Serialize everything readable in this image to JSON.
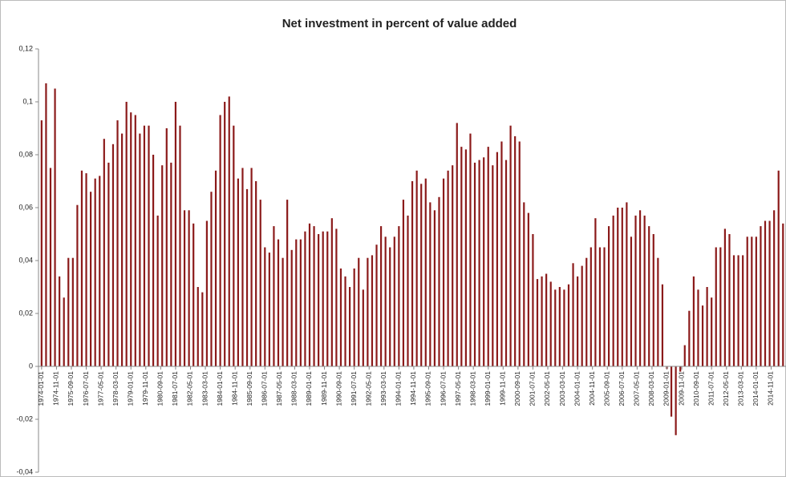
{
  "chart_data": {
    "type": "bar",
    "title": "Net investment in percent of value added",
    "color": "#8b1a1a",
    "x": [
      "1974-01-01",
      "1974-04-01",
      "1974-07-01",
      "1974-10-01",
      "1975-01-01",
      "1975-04-01",
      "1975-07-01",
      "1975-10-01",
      "1976-01-01",
      "1976-04-01",
      "1976-07-01",
      "1976-10-01",
      "1977-01-01",
      "1977-04-01",
      "1977-07-01",
      "1977-10-01",
      "1978-01-01",
      "1978-04-01",
      "1978-07-01",
      "1978-10-01",
      "1979-01-01",
      "1979-04-01",
      "1979-07-01",
      "1979-10-01",
      "1980-01-01",
      "1980-04-01",
      "1980-07-01",
      "1980-10-01",
      "1981-01-01",
      "1981-04-01",
      "1981-07-01",
      "1981-10-01",
      "1982-01-01",
      "1982-04-01",
      "1982-07-01",
      "1982-10-01",
      "1983-01-01",
      "1983-04-01",
      "1983-07-01",
      "1983-10-01",
      "1984-01-01",
      "1984-04-01",
      "1984-07-01",
      "1984-10-01",
      "1985-01-01",
      "1985-04-01",
      "1985-07-01",
      "1985-10-01",
      "1986-01-01",
      "1986-04-01",
      "1986-07-01",
      "1986-10-01",
      "1987-01-01",
      "1987-04-01",
      "1987-07-01",
      "1987-10-01",
      "1988-01-01",
      "1988-04-01",
      "1988-07-01",
      "1988-10-01",
      "1989-01-01",
      "1989-04-01",
      "1989-07-01",
      "1989-10-01",
      "1990-01-01",
      "1990-04-01",
      "1990-07-01",
      "1990-10-01",
      "1991-01-01",
      "1991-04-01",
      "1991-07-01",
      "1991-10-01",
      "1992-01-01",
      "1992-04-01",
      "1992-07-01",
      "1992-10-01",
      "1993-01-01",
      "1993-04-01",
      "1993-07-01",
      "1993-10-01",
      "1994-01-01",
      "1994-04-01",
      "1994-07-01",
      "1994-10-01",
      "1995-01-01",
      "1995-04-01",
      "1995-07-01",
      "1995-10-01",
      "1996-01-01",
      "1996-04-01",
      "1996-07-01",
      "1996-10-01",
      "1997-01-01",
      "1997-04-01",
      "1997-07-01",
      "1997-10-01",
      "1998-01-01",
      "1998-04-01",
      "1998-07-01",
      "1998-10-01",
      "1999-01-01",
      "1999-04-01",
      "1999-07-01",
      "1999-10-01",
      "2000-01-01",
      "2000-04-01",
      "2000-07-01",
      "2000-10-01",
      "2001-01-01",
      "2001-04-01",
      "2001-07-01",
      "2001-10-01",
      "2002-01-01",
      "2002-04-01",
      "2002-07-01",
      "2002-10-01",
      "2003-01-01",
      "2003-04-01",
      "2003-07-01",
      "2003-10-01",
      "2004-01-01",
      "2004-04-01",
      "2004-07-01",
      "2004-10-01",
      "2005-01-01",
      "2005-04-01",
      "2005-07-01",
      "2005-10-01",
      "2006-01-01",
      "2006-04-01",
      "2006-07-01",
      "2006-10-01",
      "2007-01-01",
      "2007-04-01",
      "2007-07-01",
      "2007-10-01",
      "2008-01-01",
      "2008-04-01",
      "2008-07-01",
      "2008-10-01",
      "2009-01-01",
      "2009-04-01",
      "2009-07-01",
      "2009-10-01",
      "2010-01-01",
      "2010-04-01",
      "2010-07-01",
      "2010-10-01",
      "2011-01-01",
      "2011-04-01",
      "2011-07-01",
      "2011-10-01",
      "2012-01-01",
      "2012-04-01",
      "2012-07-01",
      "2012-10-01",
      "2013-01-01",
      "2013-04-01",
      "2013-07-01",
      "2013-10-01",
      "2014-01-01",
      "2014-04-01",
      "2014-07-01",
      "2014-10-01",
      "2015-01-01",
      "2015-04-01",
      "2015-07-01"
    ],
    "values": [
      0.093,
      0.107,
      0.075,
      0.105,
      0.034,
      0.026,
      0.041,
      0.041,
      0.061,
      0.074,
      0.073,
      0.066,
      0.071,
      0.072,
      0.086,
      0.077,
      0.084,
      0.093,
      0.088,
      0.1,
      0.096,
      0.095,
      0.088,
      0.091,
      0.091,
      0.08,
      0.057,
      0.076,
      0.09,
      0.077,
      0.1,
      0.091,
      0.059,
      0.059,
      0.054,
      0.03,
      0.028,
      0.055,
      0.066,
      0.074,
      0.095,
      0.1,
      0.102,
      0.091,
      0.071,
      0.075,
      0.067,
      0.075,
      0.07,
      0.063,
      0.045,
      0.043,
      0.053,
      0.048,
      0.041,
      0.063,
      0.044,
      0.048,
      0.048,
      0.051,
      0.054,
      0.053,
      0.05,
      0.051,
      0.051,
      0.056,
      0.052,
      0.037,
      0.034,
      0.03,
      0.037,
      0.041,
      0.029,
      0.041,
      0.042,
      0.046,
      0.053,
      0.049,
      0.045,
      0.049,
      0.053,
      0.063,
      0.057,
      0.07,
      0.074,
      0.069,
      0.071,
      0.062,
      0.059,
      0.064,
      0.071,
      0.074,
      0.076,
      0.092,
      0.083,
      0.082,
      0.088,
      0.077,
      0.078,
      0.079,
      0.083,
      0.076,
      0.081,
      0.085,
      0.078,
      0.091,
      0.087,
      0.085,
      0.062,
      0.058,
      0.05,
      0.033,
      0.034,
      0.035,
      0.032,
      0.029,
      0.03,
      0.029,
      0.031,
      0.039,
      0.034,
      0.038,
      0.041,
      0.045,
      0.056,
      0.045,
      0.045,
      0.053,
      0.057,
      0.06,
      0.06,
      0.062,
      0.049,
      0.057,
      0.059,
      0.057,
      0.053,
      0.05,
      0.041,
      0.031,
      -0.001,
      -0.019,
      -0.026,
      -0.002,
      0.008,
      0.021,
      0.034,
      0.029,
      0.023,
      0.03,
      0.026,
      0.045,
      0.045,
      0.052,
      0.05,
      0.042,
      0.042,
      0.042,
      0.049,
      0.049,
      0.049,
      0.053,
      0.055,
      0.055,
      0.059,
      0.074,
      0.054
    ],
    "xlim": [
      "1973-12-01",
      "2015-09-01"
    ],
    "xticks": [
      "1974-01-01",
      "1974-11-01",
      "1975-09-01",
      "1976-07-01",
      "1977-05-01",
      "1978-03-01",
      "1979-01-01",
      "1979-11-01",
      "1980-09-01",
      "1981-07-01",
      "1982-05-01",
      "1983-03-01",
      "1984-01-01",
      "1984-11-01",
      "1985-09-01",
      "1986-07-01",
      "1987-05-01",
      "1988-03-01",
      "1989-01-01",
      "1989-11-01",
      "1990-09-01",
      "1991-07-01",
      "1992-05-01",
      "1993-03-01",
      "1994-01-01",
      "1994-11-01",
      "1995-09-01",
      "1996-07-01",
      "1997-05-01",
      "1998-03-01",
      "1999-01-01",
      "1999-11-01",
      "2000-09-01",
      "2001-07-01",
      "2002-05-01",
      "2003-03-01",
      "2004-01-01",
      "2004-11-01",
      "2005-09-01",
      "2006-07-01",
      "2007-05-01",
      "2008-03-01",
      "2009-01-01",
      "2009-11-01",
      "2010-09-01",
      "2011-07-01",
      "2012-05-01",
      "2013-03-01",
      "2014-01-01",
      "2014-11-01"
    ],
    "ylim": [
      -0.04,
      0.12
    ],
    "yticks": [
      {
        "value": -0.04,
        "label": "-0,04"
      },
      {
        "value": -0.02,
        "label": "-0,02"
      },
      0,
      {
        "value": 0.02,
        "label": "0,02"
      },
      {
        "value": 0.04,
        "label": "0,04"
      },
      {
        "value": 0.06,
        "label": "0,06"
      },
      {
        "value": 0.08,
        "label": "0,08"
      },
      {
        "value": 0.1,
        "label": "0,1"
      },
      {
        "value": 0.12,
        "label": "0,12"
      }
    ],
    "grid": false
  }
}
